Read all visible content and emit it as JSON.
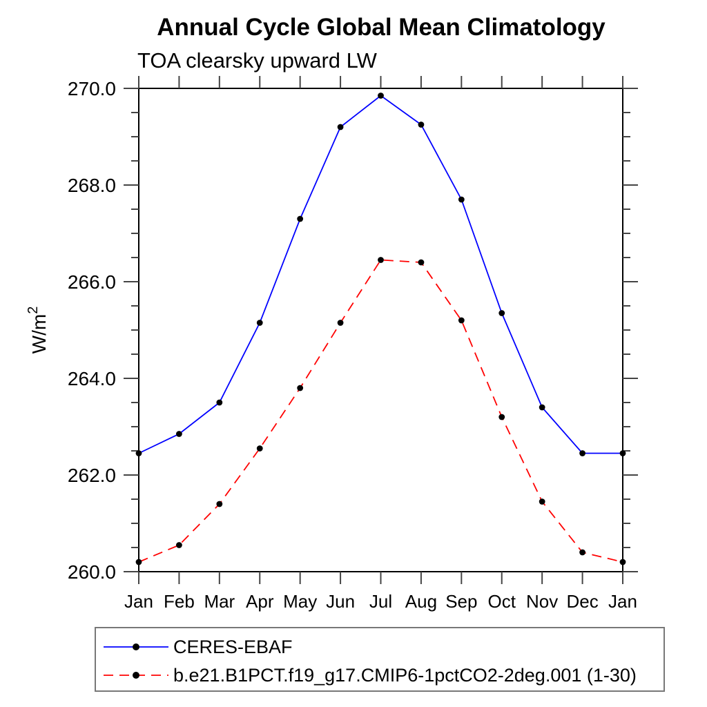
{
  "ylabel_base": "W/m",
  "ylabel_sup": "2",
  "chart_data": {
    "type": "line",
    "title": "Annual Cycle Global Mean Climatology",
    "subtitle": "TOA clearsky upward LW",
    "ylabel": "W/m2",
    "xlabel": "",
    "categories": [
      "Jan",
      "Feb",
      "Mar",
      "Apr",
      "May",
      "Jun",
      "Jul",
      "Aug",
      "Sep",
      "Oct",
      "Nov",
      "Dec",
      "Jan"
    ],
    "series": [
      {
        "name": "CERES-EBAF",
        "color": "#0000ff",
        "line_style": "solid",
        "marker": "filled-circle",
        "marker_color": "#000000",
        "values": [
          262.45,
          262.85,
          263.5,
          265.15,
          267.3,
          269.2,
          269.85,
          269.25,
          267.7,
          265.35,
          263.4,
          262.45,
          262.45
        ]
      },
      {
        "name": "b.e21.B1PCT.f19_g17.CMIP6-1pctCO2-2deg.001 (1-30)",
        "color": "#ff0000",
        "line_style": "dashed",
        "marker": "filled-circle",
        "marker_color": "#000000",
        "values": [
          260.2,
          260.55,
          261.4,
          262.55,
          263.8,
          265.15,
          266.45,
          266.4,
          265.2,
          263.2,
          261.45,
          260.4,
          260.2
        ]
      }
    ],
    "ylim": [
      260.0,
      270.0
    ],
    "ytick_major": 2.0,
    "ytick_minor": 0.5,
    "ytick_labels": [
      "260.0",
      "262.0",
      "264.0",
      "266.0",
      "268.0",
      "270.0"
    ],
    "grid": false,
    "legend_position": "bottom",
    "frame_color": "#000000",
    "tick_color": "#444444"
  }
}
